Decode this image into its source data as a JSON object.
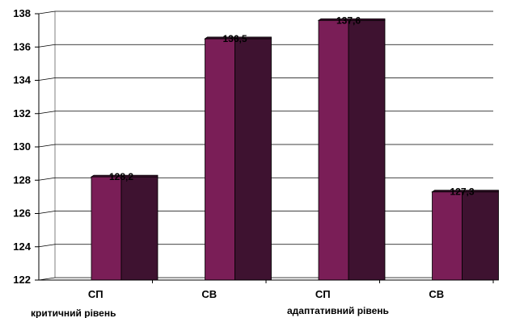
{
  "chart_data": {
    "type": "bar",
    "title": "",
    "xlabel": "",
    "ylabel": "",
    "ylim": [
      122,
      138
    ],
    "yticks": [
      "122",
      "124",
      "126",
      "128",
      "130",
      "132",
      "134",
      "136",
      "138"
    ],
    "grid": true,
    "legend": "none",
    "categories": [
      "СП",
      "СВ",
      "СП",
      "СВ"
    ],
    "groups": [
      "критичний рівень",
      "адаптативний рівень"
    ],
    "values": [
      128.2,
      136.5,
      137.6,
      127.3
    ],
    "data_labels": [
      "128,2",
      "136,5",
      "137,6",
      "127,3"
    ],
    "colors": {
      "bar_front": "#7a1e57",
      "bar_side": "#3e1230",
      "grid": "#000000",
      "background": "#ffffff"
    }
  }
}
